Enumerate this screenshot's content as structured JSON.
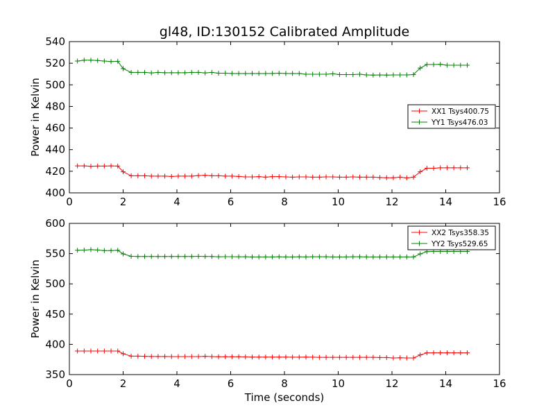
{
  "figure": {
    "title": "gl48, ID:130152 Calibrated Amplitude",
    "xlabel": "Time (seconds)"
  },
  "colors": {
    "red": "#ff0000",
    "green": "#008000"
  },
  "chart_data": [
    {
      "type": "line",
      "ylabel": "Power in Kelvin",
      "xlim": [
        0,
        16
      ],
      "ylim": [
        400,
        540
      ],
      "xticks": [
        0,
        2,
        4,
        6,
        8,
        10,
        12,
        14,
        16
      ],
      "yticks": [
        400,
        420,
        440,
        460,
        480,
        500,
        520,
        540
      ],
      "legend_position": "center-right",
      "series": [
        {
          "name": "XX1 Tsys400.75",
          "color": "red",
          "marker": "+",
          "points": [
            [
              0.3,
              425
            ],
            [
              0.55,
              425
            ],
            [
              0.8,
              424.6
            ],
            [
              1.05,
              424.8
            ],
            [
              1.3,
              424.8
            ],
            [
              1.55,
              425
            ],
            [
              1.8,
              424.8
            ],
            [
              2.0,
              419.5
            ],
            [
              2.3,
              415.8
            ],
            [
              2.55,
              415.8
            ],
            [
              2.8,
              415.8
            ],
            [
              3.05,
              415.5
            ],
            [
              3.3,
              415.5
            ],
            [
              3.55,
              415.5
            ],
            [
              3.8,
              415.2
            ],
            [
              4.05,
              415.5
            ],
            [
              4.3,
              415.5
            ],
            [
              4.55,
              415.5
            ],
            [
              4.8,
              416
            ],
            [
              5.05,
              416.2
            ],
            [
              5.3,
              415.8
            ],
            [
              5.55,
              415.8
            ],
            [
              5.8,
              415.5
            ],
            [
              6.05,
              415.5
            ],
            [
              6.3,
              415.2
            ],
            [
              6.55,
              414.8
            ],
            [
              6.8,
              414.8
            ],
            [
              7.05,
              415
            ],
            [
              7.3,
              414.5
            ],
            [
              7.55,
              415
            ],
            [
              7.8,
              415
            ],
            [
              8.05,
              414.8
            ],
            [
              8.3,
              414.5
            ],
            [
              8.55,
              414.8
            ],
            [
              8.8,
              414.8
            ],
            [
              9.05,
              414.5
            ],
            [
              9.3,
              414.5
            ],
            [
              9.55,
              414.8
            ],
            [
              9.8,
              414.8
            ],
            [
              10.05,
              414.5
            ],
            [
              10.3,
              414.5
            ],
            [
              10.55,
              414.8
            ],
            [
              10.8,
              414.5
            ],
            [
              11.05,
              414.5
            ],
            [
              11.3,
              414.5
            ],
            [
              11.55,
              414.2
            ],
            [
              11.8,
              414
            ],
            [
              12.05,
              414
            ],
            [
              12.3,
              414.5
            ],
            [
              12.55,
              413.8
            ],
            [
              12.8,
              414.5
            ],
            [
              13.05,
              419.5
            ],
            [
              13.3,
              422.8
            ],
            [
              13.55,
              422.8
            ],
            [
              13.8,
              423.2
            ],
            [
              14.05,
              423.2
            ],
            [
              14.3,
              423.2
            ],
            [
              14.55,
              423.2
            ],
            [
              14.8,
              423.2
            ]
          ]
        },
        {
          "name": "YY1 Tsys476.03",
          "color": "green",
          "marker": "+",
          "points": [
            [
              0.3,
              522
            ],
            [
              0.55,
              522.8
            ],
            [
              0.8,
              522.8
            ],
            [
              1.05,
              522.5
            ],
            [
              1.3,
              522
            ],
            [
              1.55,
              521.5
            ],
            [
              1.8,
              521.8
            ],
            [
              2.0,
              515
            ],
            [
              2.3,
              511.5
            ],
            [
              2.55,
              511.5
            ],
            [
              2.8,
              511.5
            ],
            [
              3.05,
              511
            ],
            [
              3.3,
              511.5
            ],
            [
              3.55,
              511.2
            ],
            [
              3.8,
              511.2
            ],
            [
              4.05,
              511.2
            ],
            [
              4.3,
              511.2
            ],
            [
              4.55,
              511.5
            ],
            [
              4.8,
              511.5
            ],
            [
              5.05,
              511
            ],
            [
              5.3,
              511.5
            ],
            [
              5.55,
              510.8
            ],
            [
              5.8,
              510.8
            ],
            [
              6.05,
              510.5
            ],
            [
              6.3,
              510.5
            ],
            [
              6.55,
              510.5
            ],
            [
              6.8,
              510.5
            ],
            [
              7.05,
              510.5
            ],
            [
              7.3,
              510.5
            ],
            [
              7.55,
              510.5
            ],
            [
              7.8,
              510.8
            ],
            [
              8.05,
              510.5
            ],
            [
              8.3,
              510.5
            ],
            [
              8.55,
              510.5
            ],
            [
              8.8,
              509.8
            ],
            [
              9.05,
              509.8
            ],
            [
              9.3,
              509.8
            ],
            [
              9.55,
              509.8
            ],
            [
              9.8,
              510.2
            ],
            [
              10.05,
              509.5
            ],
            [
              10.3,
              509.5
            ],
            [
              10.55,
              509.5
            ],
            [
              10.8,
              509.8
            ],
            [
              11.05,
              509.2
            ],
            [
              11.3,
              509
            ],
            [
              11.55,
              509.2
            ],
            [
              11.8,
              509
            ],
            [
              12.05,
              509.2
            ],
            [
              12.3,
              509.2
            ],
            [
              12.55,
              509.2
            ],
            [
              12.8,
              509.5
            ],
            [
              13.05,
              515.5
            ],
            [
              13.3,
              518.8
            ],
            [
              13.55,
              518.8
            ],
            [
              13.8,
              519
            ],
            [
              14.05,
              518.2
            ],
            [
              14.3,
              518.2
            ],
            [
              14.55,
              518.2
            ],
            [
              14.8,
              518.2
            ]
          ]
        }
      ]
    },
    {
      "type": "line",
      "ylabel": "Power in Kelvin",
      "xlabel": "Time (seconds)",
      "xlim": [
        0,
        16
      ],
      "ylim": [
        350,
        600
      ],
      "xticks": [
        0,
        2,
        4,
        6,
        8,
        10,
        12,
        14,
        16
      ],
      "yticks": [
        350,
        400,
        450,
        500,
        550,
        600
      ],
      "legend_position": "upper-right",
      "series": [
        {
          "name": "XX2 Tsys358.35",
          "color": "red",
          "marker": "+",
          "points": [
            [
              0.3,
              389
            ],
            [
              0.55,
              389
            ],
            [
              0.8,
              389
            ],
            [
              1.05,
              389
            ],
            [
              1.3,
              389
            ],
            [
              1.55,
              389
            ],
            [
              1.8,
              389
            ],
            [
              2.0,
              384.5
            ],
            [
              2.3,
              380.5
            ],
            [
              2.55,
              380.5
            ],
            [
              2.8,
              380.2
            ],
            [
              3.05,
              380
            ],
            [
              3.3,
              380
            ],
            [
              3.55,
              380
            ],
            [
              3.8,
              379.8
            ],
            [
              4.05,
              379.8
            ],
            [
              4.3,
              379.8
            ],
            [
              4.55,
              379.8
            ],
            [
              4.8,
              379.8
            ],
            [
              5.05,
              380.2
            ],
            [
              5.3,
              379.8
            ],
            [
              5.55,
              379.5
            ],
            [
              5.8,
              379.5
            ],
            [
              6.05,
              379.5
            ],
            [
              6.3,
              379.5
            ],
            [
              6.55,
              379.2
            ],
            [
              6.8,
              379
            ],
            [
              7.05,
              379
            ],
            [
              7.3,
              379
            ],
            [
              7.55,
              379
            ],
            [
              7.8,
              379
            ],
            [
              8.05,
              379
            ],
            [
              8.3,
              378.8
            ],
            [
              8.55,
              378.8
            ],
            [
              8.8,
              379
            ],
            [
              9.05,
              378.8
            ],
            [
              9.3,
              378.5
            ],
            [
              9.55,
              378.5
            ],
            [
              9.8,
              378.5
            ],
            [
              10.05,
              378.5
            ],
            [
              10.3,
              378.5
            ],
            [
              10.55,
              378.5
            ],
            [
              10.8,
              378.5
            ],
            [
              11.05,
              378.5
            ],
            [
              11.3,
              378.5
            ],
            [
              11.55,
              378.2
            ],
            [
              11.8,
              378.2
            ],
            [
              12.05,
              377.5
            ],
            [
              12.3,
              377.8
            ],
            [
              12.55,
              377.5
            ],
            [
              12.8,
              377.5
            ],
            [
              13.05,
              382.5
            ],
            [
              13.3,
              386
            ],
            [
              13.55,
              386
            ],
            [
              13.8,
              386
            ],
            [
              14.05,
              386
            ],
            [
              14.3,
              386
            ],
            [
              14.55,
              386
            ],
            [
              14.8,
              386
            ]
          ]
        },
        {
          "name": "YY2 Tsys529.65",
          "color": "green",
          "marker": "+",
          "points": [
            [
              0.3,
              555.5
            ],
            [
              0.55,
              555.8
            ],
            [
              0.8,
              556.5
            ],
            [
              1.05,
              556
            ],
            [
              1.3,
              555
            ],
            [
              1.55,
              555
            ],
            [
              1.8,
              555.5
            ],
            [
              2.0,
              549.5
            ],
            [
              2.3,
              545.5
            ],
            [
              2.55,
              545.2
            ],
            [
              2.8,
              545.2
            ],
            [
              3.05,
              545.2
            ],
            [
              3.3,
              545.2
            ],
            [
              3.55,
              545.2
            ],
            [
              3.8,
              545.2
            ],
            [
              4.05,
              545.2
            ],
            [
              4.3,
              545.2
            ],
            [
              4.55,
              545.2
            ],
            [
              4.8,
              545.5
            ],
            [
              5.05,
              545.2
            ],
            [
              5.3,
              545.2
            ],
            [
              5.55,
              544.8
            ],
            [
              5.8,
              545
            ],
            [
              6.05,
              545
            ],
            [
              6.3,
              544.8
            ],
            [
              6.55,
              544.8
            ],
            [
              6.8,
              544.5
            ],
            [
              7.05,
              544.5
            ],
            [
              7.3,
              544.5
            ],
            [
              7.55,
              544.5
            ],
            [
              7.8,
              544.8
            ],
            [
              8.05,
              544.5
            ],
            [
              8.3,
              544.5
            ],
            [
              8.55,
              544.8
            ],
            [
              8.8,
              544.5
            ],
            [
              9.05,
              544.8
            ],
            [
              9.3,
              544.8
            ],
            [
              9.55,
              544.8
            ],
            [
              9.8,
              544.5
            ],
            [
              10.05,
              544.5
            ],
            [
              10.3,
              544.5
            ],
            [
              10.55,
              544.8
            ],
            [
              10.8,
              544.8
            ],
            [
              11.05,
              544.5
            ],
            [
              11.3,
              544.5
            ],
            [
              11.55,
              544.5
            ],
            [
              11.8,
              544.5
            ],
            [
              12.05,
              544.5
            ],
            [
              12.3,
              544.5
            ],
            [
              12.55,
              544.5
            ],
            [
              12.8,
              544.5
            ],
            [
              13.05,
              549.5
            ],
            [
              13.3,
              553.2
            ],
            [
              13.55,
              553.5
            ],
            [
              13.8,
              553.5
            ],
            [
              14.05,
              553.5
            ],
            [
              14.3,
              553.5
            ],
            [
              14.55,
              553.5
            ],
            [
              14.8,
              553.5
            ]
          ]
        }
      ]
    }
  ]
}
